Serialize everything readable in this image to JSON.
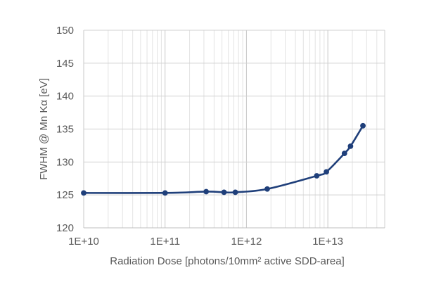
{
  "chart_data": {
    "type": "line",
    "title": "",
    "xlabel": "Radiation Dose [photons/10mm² active SDD-area]",
    "ylabel": "FWHM @ Mn Kα [eV]",
    "xscale": "log",
    "xlim": [
      10000000000.0,
      50000000000000.0
    ],
    "ylim": [
      120,
      150
    ],
    "xticks": [
      {
        "value": 10000000000.0,
        "label": "1E+10"
      },
      {
        "value": 100000000000.0,
        "label": "1E+11"
      },
      {
        "value": 1000000000000.0,
        "label": "1E+12"
      },
      {
        "value": 10000000000000.0,
        "label": "1E+13"
      }
    ],
    "yticks": [
      {
        "value": 120,
        "label": "120"
      },
      {
        "value": 125,
        "label": "125"
      },
      {
        "value": 130,
        "label": "130"
      },
      {
        "value": 135,
        "label": "135"
      },
      {
        "value": 140,
        "label": "140"
      },
      {
        "value": 145,
        "label": "145"
      },
      {
        "value": 150,
        "label": "150"
      }
    ],
    "grid": true,
    "legend": "none",
    "series": [
      {
        "color": "#1f3f7a",
        "x": [
          10000000000.0,
          100000000000.0,
          320000000000.0,
          530000000000.0,
          730000000000.0,
          1800000000000.0,
          7300000000000.0,
          9600000000000.0,
          16000000000000.0,
          19000000000000.0,
          27000000000000.0
        ],
        "y": [
          125.3,
          125.3,
          125.5,
          125.4,
          125.4,
          125.9,
          127.9,
          128.5,
          131.3,
          132.4,
          135.5
        ]
      }
    ]
  }
}
